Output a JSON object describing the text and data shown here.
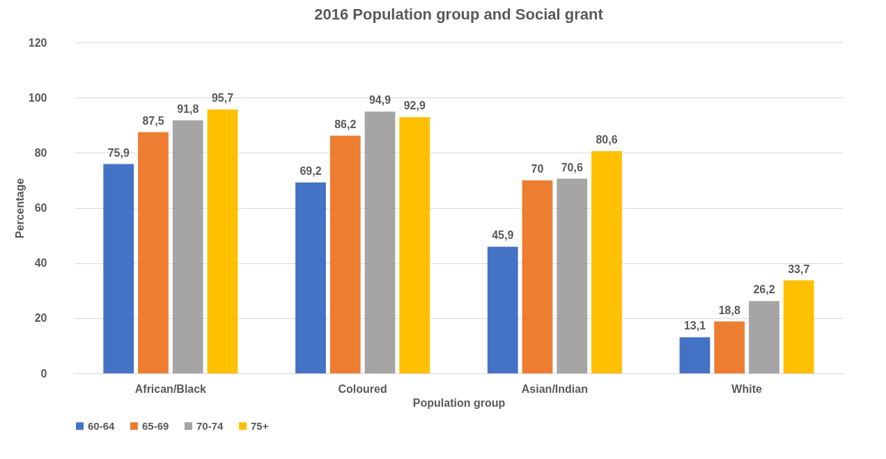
{
  "chart_data": {
    "type": "bar",
    "title": "2016  Population group and Social grant",
    "xlabel": "Population group",
    "ylabel": "Percentage",
    "categories": [
      "African/Black",
      "Coloured",
      "Asian/Indian",
      "White"
    ],
    "series": [
      {
        "name": "60-64",
        "color": "#4472c4",
        "values": [
          75.9,
          69.2,
          45.9,
          13.1
        ],
        "value_labels": [
          "75,9",
          "69,2",
          "45,9",
          "13,1"
        ]
      },
      {
        "name": "65-69",
        "color": "#ed7d31",
        "values": [
          87.5,
          86.2,
          70,
          18.8
        ],
        "value_labels": [
          "87,5",
          "86,2",
          "70",
          "18,8"
        ]
      },
      {
        "name": "70-74",
        "color": "#a5a5a5",
        "values": [
          91.8,
          94.9,
          70.6,
          26.2
        ],
        "value_labels": [
          "91,8",
          "94,9",
          "70,6",
          "26,2"
        ]
      },
      {
        "name": "75+",
        "color": "#ffc000",
        "values": [
          95.7,
          92.9,
          80.6,
          33.7
        ],
        "value_labels": [
          "95,7",
          "92,9",
          "80,6",
          "33,7"
        ]
      }
    ],
    "ylim": [
      0,
      120
    ],
    "yticks": [
      0,
      20,
      40,
      60,
      80,
      100,
      120
    ],
    "grid": "y",
    "legend": "bottom"
  }
}
